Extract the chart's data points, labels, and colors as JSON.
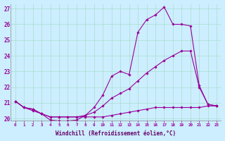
{
  "xlabel": "Windchill (Refroidissement éolien,°C)",
  "background_color": "#cceeff",
  "grid_color": "#aaddcc",
  "line_color": "#990099",
  "xlim_min": -0.5,
  "xlim_max": 23.5,
  "ylim_min": 19.85,
  "ylim_max": 27.3,
  "yticks": [
    20,
    21,
    22,
    23,
    24,
    25,
    26,
    27
  ],
  "xticks": [
    0,
    1,
    2,
    3,
    4,
    5,
    6,
    7,
    8,
    9,
    10,
    11,
    12,
    13,
    14,
    15,
    16,
    17,
    18,
    19,
    20,
    21,
    22,
    23
  ],
  "line1_x": [
    0,
    1,
    2,
    3,
    4,
    5,
    6,
    7,
    8,
    9,
    10,
    11,
    12,
    13,
    14,
    15,
    16,
    17,
    18,
    19,
    20,
    21,
    22,
    23
  ],
  "line1_y": [
    21.1,
    20.7,
    20.6,
    20.3,
    19.9,
    19.85,
    19.85,
    19.9,
    20.2,
    20.7,
    21.5,
    22.7,
    23.0,
    22.8,
    25.5,
    26.3,
    26.6,
    27.1,
    26.0,
    26.0,
    25.9,
    22.1,
    20.9,
    20.8
  ],
  "line2_x": [
    0,
    1,
    2,
    3,
    4,
    5,
    6,
    7,
    8,
    9,
    10,
    11,
    12,
    13,
    14,
    15,
    16,
    17,
    18,
    19,
    20,
    21,
    22,
    23
  ],
  "line2_y": [
    21.1,
    20.7,
    20.6,
    20.3,
    20.1,
    20.1,
    20.1,
    20.1,
    20.2,
    20.4,
    20.8,
    21.3,
    21.6,
    21.9,
    22.4,
    22.9,
    23.3,
    23.7,
    24.0,
    24.3,
    24.3,
    22.0,
    20.9,
    20.8
  ],
  "line3_x": [
    0,
    1,
    2,
    3,
    4,
    5,
    6,
    7,
    8,
    9,
    10,
    11,
    12,
    13,
    14,
    15,
    16,
    17,
    18,
    19,
    20,
    21,
    22,
    23
  ],
  "line3_y": [
    21.1,
    20.7,
    20.5,
    20.3,
    20.1,
    20.1,
    20.1,
    20.1,
    20.1,
    20.1,
    20.1,
    20.2,
    20.3,
    20.4,
    20.5,
    20.6,
    20.7,
    20.7,
    20.7,
    20.7,
    20.7,
    20.7,
    20.8,
    20.8
  ],
  "xlabel_fontsize": 5.5,
  "ytick_fontsize": 5.5,
  "xtick_fontsize": 4.2,
  "marker_size": 1.8,
  "line_width": 0.8
}
